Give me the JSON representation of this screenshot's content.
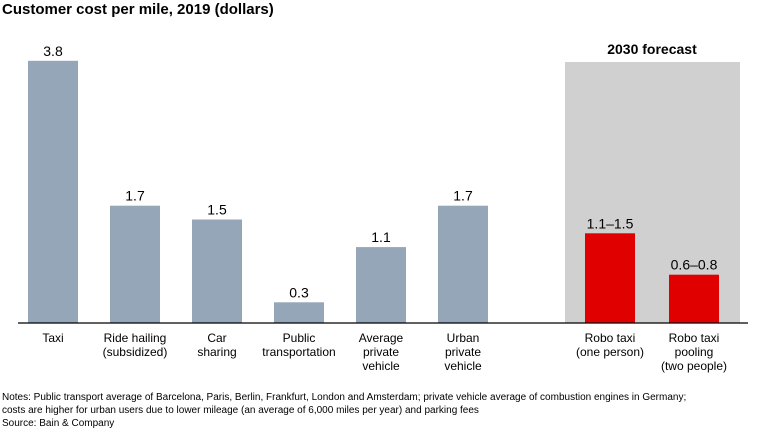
{
  "chart_data": {
    "type": "bar",
    "title": "Customer cost per mile, 2019 (dollars)",
    "forecast_label": "2030 forecast",
    "categories": [
      [
        "Taxi"
      ],
      [
        "Ride hailing",
        "(subsidized)"
      ],
      [
        "Car",
        "sharing"
      ],
      [
        "Public",
        "transportation"
      ],
      [
        "Average",
        "private",
        "vehicle"
      ],
      [
        "Urban",
        "private",
        "vehicle"
      ],
      [
        "Robo taxi",
        "(one person)"
      ],
      [
        "Robo taxi",
        "pooling",
        "(two people)"
      ]
    ],
    "values": [
      3.8,
      1.7,
      1.5,
      0.3,
      1.1,
      1.7,
      1.3,
      0.7
    ],
    "value_labels": [
      "3.8",
      "1.7",
      "1.5",
      "0.3",
      "1.1",
      "1.7",
      "1.1–1.5",
      "0.6–0.8"
    ],
    "colors": [
      "#94a6b8",
      "#94a6b8",
      "#94a6b8",
      "#94a6b8",
      "#94a6b8",
      "#94a6b8",
      "#e00000",
      "#e00000"
    ],
    "ylim": [
      0,
      4
    ],
    "notes": [
      "Notes: Public transport average of Barcelona, Paris, Berlin, Frankfurt, London and Amsterdam; private vehicle average of combustion engines in Germany;",
      "costs are higher for urban users due to lower mileage (an average of 6,000 miles per year) and parking fees"
    ],
    "source": "Source: Bain & Company"
  }
}
